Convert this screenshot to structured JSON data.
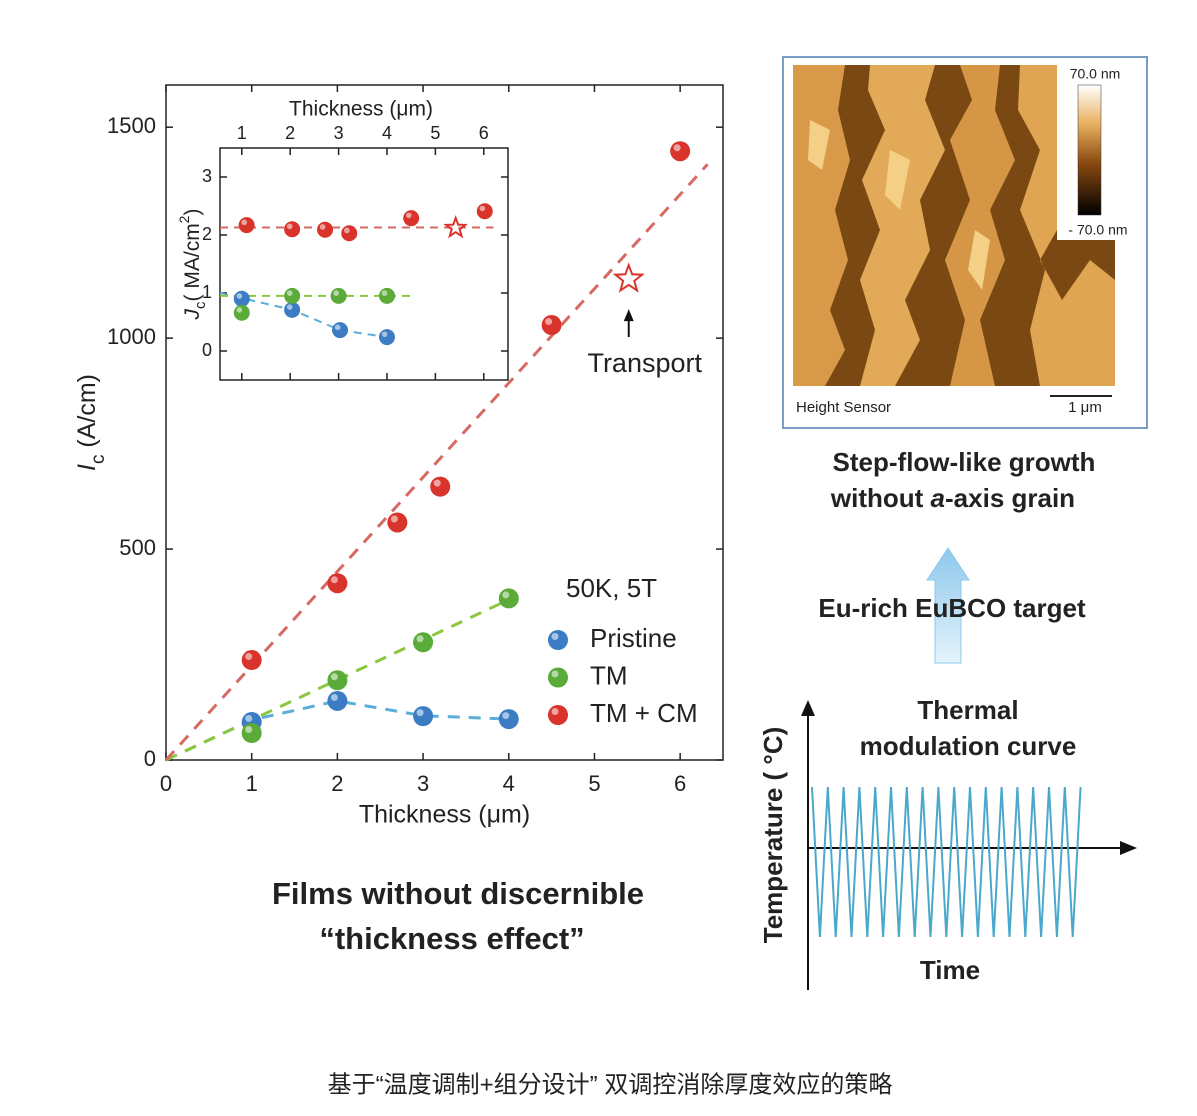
{
  "chart_data": [
    {
      "type": "scatter",
      "xlabel": "Thickness (μm)",
      "ylabel": {
        "symbol": "I",
        "sub": "c",
        "unit": " (A/cm)"
      },
      "xlim": [
        0,
        6.5
      ],
      "ylim": [
        0,
        1600
      ],
      "xticks": [
        0,
        1,
        2,
        3,
        4,
        5,
        6
      ],
      "yticks": [
        0,
        500,
        1000,
        1500
      ],
      "legend": "lower right",
      "legend_title": "50K, 5T",
      "series": [
        {
          "name": "Pristine",
          "color": "#3b7cc4",
          "x": [
            1,
            2,
            3,
            4
          ],
          "values": [
            90,
            140,
            104,
            97
          ]
        },
        {
          "name": "TM",
          "color": "#5aab3a",
          "x": [
            1,
            2,
            3,
            4
          ],
          "values": [
            64,
            189,
            279,
            383
          ]
        },
        {
          "name": "TM + CM",
          "color": "#d9342b",
          "x": [
            1,
            2,
            2.7,
            3.2,
            4.5,
            6
          ],
          "values": [
            237,
            419,
            563,
            648,
            1031,
            1443
          ]
        }
      ],
      "fits": [
        {
          "color": "#5aaed8",
          "x": [
            0,
            1,
            2,
            3,
            4
          ],
          "values": [
            0,
            95,
            140,
            105,
            97
          ]
        },
        {
          "color": "#8cc63f",
          "x": [
            0,
            4
          ],
          "values": [
            0,
            380
          ]
        },
        {
          "color": "#d66a63",
          "x": [
            0,
            6.32
          ],
          "values": [
            0,
            1412
          ]
        }
      ],
      "star": {
        "x": 5.4,
        "value": 1140,
        "color": "#d9342b"
      },
      "annotation": "Transport"
    },
    {
      "type": "scatter",
      "xlabel": "Thickness (μm)",
      "ylabel": {
        "symbol": "J",
        "sub": "c",
        "unit": "( MA/cm",
        "sup": "2",
        "close": ")"
      },
      "xlim": [
        0.55,
        6.5
      ],
      "ylim": [
        -0.5,
        3.5
      ],
      "xticks": [
        1,
        2,
        3,
        4,
        5,
        6
      ],
      "yticks": [
        0,
        1,
        2,
        3
      ],
      "series": [
        {
          "color": "#3b7cc4",
          "x": [
            1,
            2.04,
            3.03,
            4
          ],
          "values": [
            0.9,
            0.71,
            0.36,
            0.24
          ]
        },
        {
          "color": "#5aab3a",
          "x": [
            1,
            2.04,
            3,
            4
          ],
          "values": [
            0.66,
            0.95,
            0.95,
            0.95
          ]
        },
        {
          "color": "#d9342b",
          "x": [
            1.1,
            2.04,
            2.72,
            3.22,
            4.5,
            6.02
          ],
          "values": [
            2.17,
            2.1,
            2.09,
            2.03,
            2.29,
            2.41
          ]
        }
      ],
      "fits": [
        {
          "color": "#5aaed8",
          "x": [
            0.55,
            2.04,
            3.03,
            4
          ],
          "values": [
            1.0,
            0.71,
            0.36,
            0.24
          ]
        },
        {
          "color": "#8cc63f",
          "x": [
            0.55,
            4.6
          ],
          "values": [
            0.95,
            0.95
          ]
        },
        {
          "color": "#d66a63",
          "x": [
            0.55,
            6.2
          ],
          "values": [
            2.13,
            2.13
          ]
        }
      ],
      "star": {
        "x": 5.42,
        "value": 2.12,
        "color": "#d9342b"
      }
    }
  ],
  "films_caption": [
    "Films without discernible",
    "“thickness effect”"
  ],
  "afm": {
    "colorbar_max": "70.0 nm",
    "colorbar_min": "- 70.0 nm",
    "sensor": "Height Sensor",
    "scale": "1 μm"
  },
  "afm_caption": {
    "line1": "Step-flow-like growth",
    "pre": "without ",
    "italic": "a",
    "post": "-axis grain"
  },
  "target": "Eu-rich EuBCO target",
  "thermal": {
    "title": [
      "Thermal",
      "modulation curve"
    ],
    "ylabel": "Temperature ( °C)",
    "xlabel": "Time"
  },
  "figure_caption": "基于“温度调制+组分设计” 双调控消除厚度效应的策略"
}
